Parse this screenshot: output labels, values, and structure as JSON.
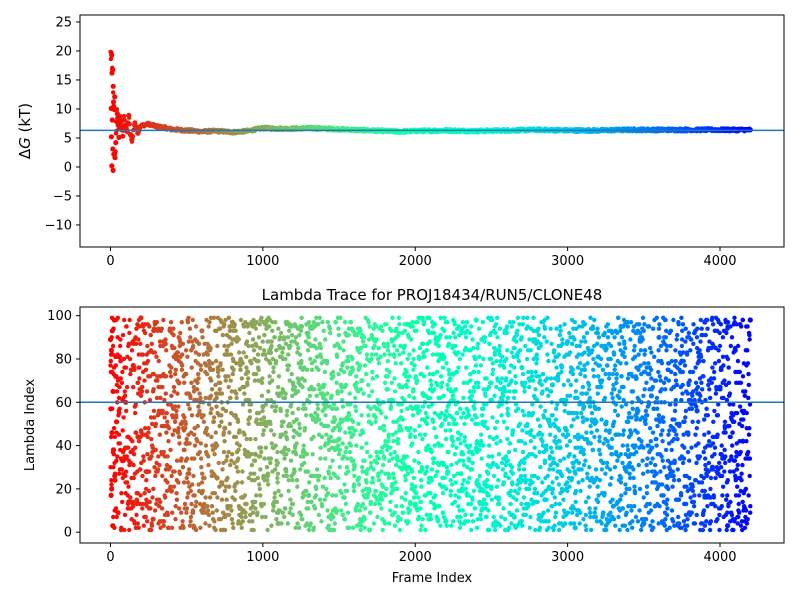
{
  "chart_data": [
    {
      "type": "scatter",
      "title": "",
      "xlabel": "",
      "ylabel": "ΔG (kT)",
      "ylabel_parts": {
        "delta": "Δ",
        "symbol": "G",
        "unit": " (kT)"
      },
      "xlim": [
        -200,
        4420
      ],
      "ylim": [
        -13.8,
        26.2
      ],
      "xticks": [
        0,
        1000,
        2000,
        3000,
        4000
      ],
      "xtick_labels": [
        "0",
        "1000",
        "2000",
        "3000",
        "4000"
      ],
      "yticks": [
        -10,
        -5,
        0,
        5,
        10,
        15,
        20,
        25
      ],
      "ytick_labels": [
        "−10",
        "−5",
        "0",
        "5",
        "10",
        "15",
        "20",
        "25"
      ],
      "grid": false,
      "colormap": "rainbow (red at frame 0 → violet at last frame)",
      "hline": {
        "y": 6.3,
        "color": "#1f77b4"
      },
      "n_frames": 4200,
      "series": [
        {
          "points": [
            [
              8,
              19.3
            ],
            [
              10,
              16.2
            ],
            [
              14,
              16.8
            ],
            [
              18,
              13.9
            ],
            [
              5,
              10.1
            ],
            [
              20,
              11.2
            ],
            [
              12,
              8.1
            ],
            [
              25,
              9.9
            ],
            [
              6,
              5.2
            ],
            [
              15,
              3.1
            ],
            [
              22,
              2.2
            ],
            [
              9,
              0.2
            ],
            [
              17,
              -0.6
            ],
            [
              30,
              1.6
            ],
            [
              35,
              4.2
            ],
            [
              40,
              7.8
            ],
            [
              28,
              12.1
            ],
            [
              45,
              9.2
            ],
            [
              55,
              5.1
            ],
            [
              60,
              8.6
            ],
            [
              70,
              7.9
            ],
            [
              80,
              5.3
            ],
            [
              90,
              8.1
            ],
            [
              100,
              7.2
            ],
            [
              110,
              6.1
            ],
            [
              120,
              8.9
            ],
            [
              130,
              5.6
            ],
            [
              140,
              4.7
            ],
            [
              160,
              7.6
            ],
            [
              180,
              5.9
            ],
            [
              200,
              7.1
            ],
            [
              250,
              7.4
            ],
            [
              300,
              7.0
            ],
            [
              350,
              6.8
            ],
            [
              400,
              6.5
            ],
            [
              500,
              6.3
            ],
            [
              600,
              6.1
            ],
            [
              700,
              6.2
            ],
            [
              800,
              6.0
            ],
            [
              900,
              6.2
            ],
            [
              1000,
              6.7
            ],
            [
              1100,
              6.6
            ],
            [
              1200,
              6.6
            ],
            [
              1300,
              6.7
            ],
            [
              1400,
              6.6
            ],
            [
              1500,
              6.5
            ],
            [
              1600,
              6.4
            ],
            [
              1700,
              6.3
            ],
            [
              1800,
              6.2
            ],
            [
              1900,
              6.1
            ],
            [
              2000,
              6.2
            ],
            [
              2200,
              6.3
            ],
            [
              2400,
              6.2
            ],
            [
              2600,
              6.3
            ],
            [
              2800,
              6.4
            ],
            [
              3000,
              6.3
            ],
            [
              3200,
              6.3
            ],
            [
              3400,
              6.4
            ],
            [
              3600,
              6.4
            ],
            [
              3800,
              6.4
            ],
            [
              4000,
              6.4
            ],
            [
              4199,
              6.4
            ]
          ]
        }
      ]
    },
    {
      "type": "scatter",
      "title": "Lambda Trace for PROJ18434/RUN5/CLONE48",
      "xlabel": "Frame Index",
      "ylabel": "Lambda Index",
      "xlim": [
        -200,
        4420
      ],
      "ylim": [
        -5,
        104
      ],
      "xticks": [
        0,
        1000,
        2000,
        3000,
        4000
      ],
      "xtick_labels": [
        "0",
        "1000",
        "2000",
        "3000",
        "4000"
      ],
      "yticks": [
        0,
        20,
        40,
        60,
        80,
        100
      ],
      "ytick_labels": [
        "0",
        "20",
        "40",
        "60",
        "80",
        "100"
      ],
      "grid": false,
      "colormap": "rainbow (red at frame 0 → violet at last frame)",
      "hline": {
        "y": 60,
        "color": "#1f77b4"
      },
      "n_frames": 4200,
      "series": [
        {
          "points": [
            [
              0,
              89
            ],
            [
              2,
              57
            ],
            [
              4,
              17
            ],
            [
              6,
              84
            ],
            [
              8,
              20
            ],
            [
              10,
              46
            ],
            [
              12,
              93
            ],
            [
              15,
              3
            ],
            [
              18,
              65
            ],
            [
              20,
              38
            ],
            [
              25,
              98
            ],
            [
              30,
              24
            ],
            [
              35,
              72
            ],
            [
              40,
              51
            ],
            [
              50,
              9
            ],
            [
              60,
              81
            ],
            [
              80,
              33
            ],
            [
              100,
              60
            ],
            [
              120,
              14
            ],
            [
              150,
              77
            ],
            [
              180,
              44
            ],
            [
              200,
              99
            ],
            [
              240,
              28
            ],
            [
              280,
              6
            ],
            [
              320,
              55
            ],
            [
              360,
              87
            ],
            [
              400,
              19
            ],
            [
              450,
              69
            ],
            [
              500,
              41
            ],
            [
              550,
              2
            ],
            [
              600,
              93
            ],
            [
              650,
              62
            ],
            [
              700,
              25
            ],
            [
              750,
              48
            ],
            [
              800,
              97
            ],
            [
              850,
              11
            ],
            [
              900,
              74
            ],
            [
              950,
              36
            ],
            [
              1000,
              58
            ],
            [
              1050,
              83
            ],
            [
              1100,
              4
            ],
            [
              1150,
              29
            ],
            [
              1200,
              66
            ],
            [
              1250,
              95
            ],
            [
              1300,
              17
            ],
            [
              1350,
              52
            ],
            [
              1400,
              79
            ],
            [
              1450,
              8
            ],
            [
              1500,
              43
            ],
            [
              1550,
              91
            ],
            [
              1600,
              31
            ],
            [
              1650,
              70
            ],
            [
              1700,
              1
            ],
            [
              1750,
              57
            ],
            [
              1800,
              86
            ],
            [
              1850,
              22
            ],
            [
              1900,
              48
            ],
            [
              1950,
              96
            ],
            [
              2000,
              13
            ],
            [
              2050,
              64
            ],
            [
              2100,
              38
            ],
            [
              2150,
              89
            ],
            [
              2200,
              5
            ],
            [
              2250,
              73
            ],
            [
              2300,
              27
            ],
            [
              2350,
              54
            ],
            [
              2400,
              98
            ],
            [
              2450,
              19
            ],
            [
              2500,
              61
            ],
            [
              2550,
              84
            ],
            [
              2600,
              33
            ],
            [
              2650,
              7
            ],
            [
              2700,
              76
            ],
            [
              2750,
              46
            ],
            [
              2800,
              93
            ],
            [
              2850,
              15
            ],
            [
              2900,
              68
            ],
            [
              2950,
              39
            ],
            [
              3000,
              88
            ],
            [
              3050,
              2
            ],
            [
              3100,
              59
            ],
            [
              3150,
              24
            ],
            [
              3200,
              81
            ],
            [
              3250,
              50
            ],
            [
              3300,
              12
            ],
            [
              3350,
              95
            ],
            [
              3400,
              35
            ],
            [
              3450,
              71
            ],
            [
              3500,
              4
            ],
            [
              3550,
              63
            ],
            [
              3600,
              90
            ],
            [
              3650,
              21
            ],
            [
              3700,
              47
            ],
            [
              3750,
              79
            ],
            [
              3800,
              9
            ],
            [
              3850,
              56
            ],
            [
              3900,
              97
            ],
            [
              3950,
              30
            ],
            [
              4000,
              67
            ],
            [
              4050,
              3
            ],
            [
              4100,
              84
            ],
            [
              4150,
              42
            ],
            [
              4199,
              98
            ]
          ]
        }
      ]
    }
  ]
}
